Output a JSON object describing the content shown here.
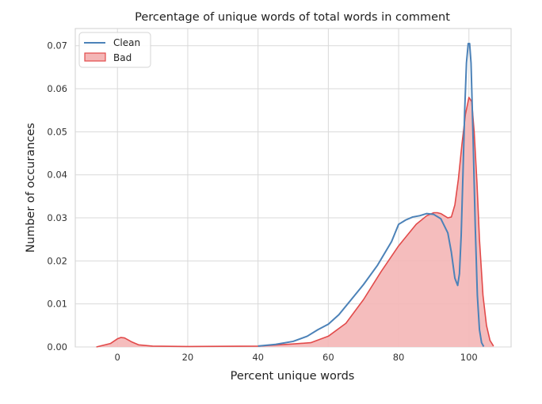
{
  "chart_data": {
    "type": "area",
    "title": "Percentage of unique words of total words in comment",
    "xlabel": "Percent unique words",
    "ylabel": "Number of occurances",
    "xlim": [
      -12,
      112
    ],
    "ylim": [
      0,
      0.074
    ],
    "xticks": [
      0,
      20,
      40,
      60,
      80,
      100
    ],
    "xtick_labels": [
      "0",
      "20",
      "40",
      "60",
      "80",
      "100"
    ],
    "yticks": [
      0,
      0.01,
      0.02,
      0.03,
      0.04,
      0.05,
      0.06,
      0.07
    ],
    "ytick_labels": [
      "0.00",
      "0.01",
      "0.02",
      "0.03",
      "0.04",
      "0.05",
      "0.06",
      "0.07"
    ],
    "grid": true,
    "legend_position": "top-left",
    "series": [
      {
        "name": "Clean",
        "style": "line",
        "color": "#4c82b8",
        "x": [
          40,
          45,
          50,
          54,
          57,
          60,
          63,
          66,
          70,
          74,
          78,
          80,
          82,
          84,
          86,
          88,
          90,
          92,
          94,
          95,
          96,
          96.8,
          97.3,
          97.8,
          98.3,
          98.8,
          99.3,
          99.8,
          100.2,
          100.6,
          101.2,
          101.8,
          102.4,
          103,
          103.6,
          104.2
        ],
        "y": [
          0.0002,
          0.0006,
          0.0013,
          0.0025,
          0.004,
          0.0053,
          0.0075,
          0.0105,
          0.0145,
          0.019,
          0.0245,
          0.0285,
          0.0295,
          0.0302,
          0.0305,
          0.031,
          0.0308,
          0.0298,
          0.0265,
          0.022,
          0.016,
          0.0143,
          0.017,
          0.026,
          0.04,
          0.055,
          0.066,
          0.0705,
          0.0705,
          0.066,
          0.048,
          0.028,
          0.012,
          0.004,
          0.001,
          0.0001
        ]
      },
      {
        "name": "Bad",
        "style": "filled-area",
        "color": "#e24a4a",
        "fill": "#f4b6b6",
        "x": [
          -6,
          -2,
          0,
          1,
          2,
          4,
          6,
          10,
          20,
          40,
          50,
          55,
          60,
          65,
          70,
          75,
          80,
          85,
          88,
          90,
          91,
          92,
          93,
          94,
          95,
          96,
          97,
          98,
          99,
          100,
          100.8,
          101.5,
          102.3,
          103,
          104,
          105,
          106,
          107
        ],
        "y": [
          0.0,
          0.0008,
          0.0019,
          0.0022,
          0.0021,
          0.0012,
          0.0005,
          0.0002,
          0.0001,
          0.0002,
          0.0007,
          0.001,
          0.0025,
          0.0055,
          0.011,
          0.0175,
          0.0235,
          0.0285,
          0.0305,
          0.0312,
          0.0312,
          0.031,
          0.0305,
          0.03,
          0.0302,
          0.033,
          0.039,
          0.047,
          0.054,
          0.058,
          0.057,
          0.05,
          0.038,
          0.025,
          0.012,
          0.005,
          0.0015,
          0.0002
        ]
      }
    ]
  }
}
